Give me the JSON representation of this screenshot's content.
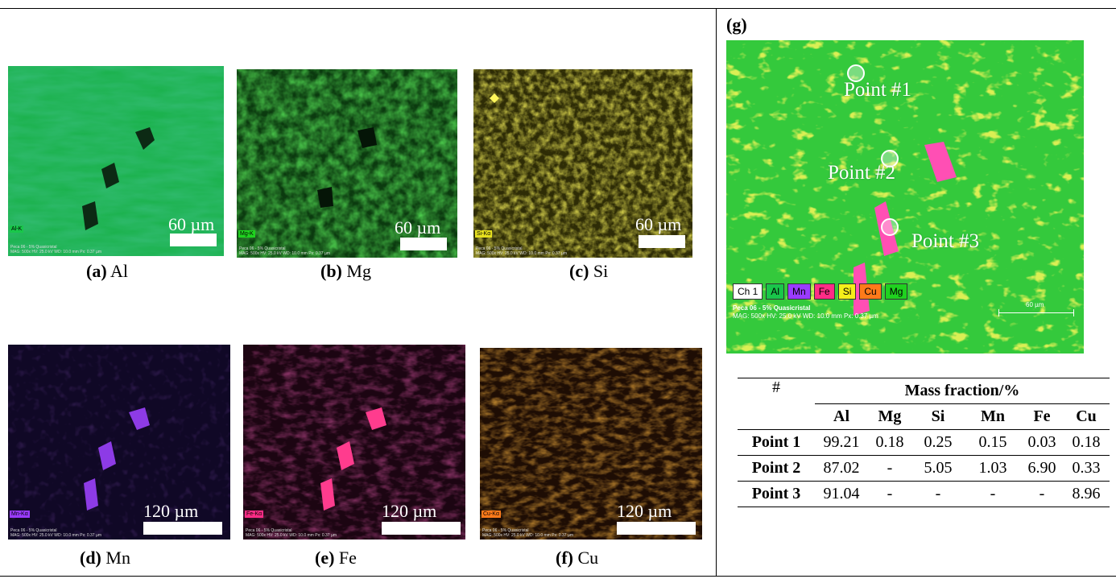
{
  "panels": [
    {
      "letter": "(a)",
      "element": "Al",
      "tag": "Al-K",
      "tag_color": "#19c64a",
      "scale": "60 µm",
      "meta": "Peca 06 - 5% Quasicristal\nMAG: 500x  HV: 25.0 kV  WD: 10.0 mm  Px: 0.37 µm"
    },
    {
      "letter": "(b)",
      "element": "Mg",
      "tag": "Mg-K",
      "tag_color": "#1fd21f",
      "scale": "60 µm",
      "meta": "Peca 06 - 5% Quasicristal\nMAG: 500x  HV: 25.0 kV  WD: 10.0 mm  Px: 0.37 µm"
    },
    {
      "letter": "(c)",
      "element": "Si",
      "tag": "Si-Kα",
      "tag_color": "#e6e01e",
      "scale": "60 µm",
      "meta": "Peca 06 - 5% Quasicristal\nMAG: 500x  HV: 25.0 kV  WD: 10.0 mm  Px: 0.37 µm"
    },
    {
      "letter": "(d)",
      "element": "Mn",
      "tag": "Mn-Kα",
      "tag_color": "#9a3bff",
      "scale": "120 µm",
      "meta": "Peca 06 - 5% Quasicristal\nMAG: 500x  HV: 25.0 kV  WD: 10.0 mm  Px: 0.37 µm"
    },
    {
      "letter": "(e)",
      "element": "Fe",
      "tag": "Fe-Kα",
      "tag_color": "#ff2c86",
      "scale": "120 µm",
      "meta": "Peca 06 - 5% Quasicristal\nMAG: 500x  HV: 25.0 kV  WD: 10.0 mm  Px: 0.37 µm"
    },
    {
      "letter": "(f)",
      "element": "Cu",
      "tag": "Cu-Kα",
      "tag_color": "#ff7a1a",
      "scale": "120 µm",
      "meta": "Peca 06 - 5% Quasicristal\nMAG: 500x  HV: 25.0 kV  WD: 10.0 mm  Px: 0.37 µm"
    }
  ],
  "composite": {
    "letter": "(g)",
    "points": [
      "Point #1",
      "Point #2",
      "Point #3"
    ],
    "legend": [
      {
        "label": "Ch 1",
        "color": "#ffffff"
      },
      {
        "label": "Al",
        "color": "#19c64a"
      },
      {
        "label": "Mn",
        "color": "#9a3bff"
      },
      {
        "label": "Fe",
        "color": "#ff2c86"
      },
      {
        "label": "Si",
        "color": "#f5ef1a"
      },
      {
        "label": "Cu",
        "color": "#ff7a1a"
      },
      {
        "label": "Mg",
        "color": "#1fd21f"
      }
    ],
    "meta_line1": "Peca 06 - 5% Quasicristal",
    "meta_line2": "MAG: 500x   HV: 25.0 kV   WD: 10.0 mm   Px: 0.37 µm",
    "scale": "60 µm"
  },
  "table": {
    "corner": "#",
    "group_header": "Mass fraction/%",
    "columns": [
      "Al",
      "Mg",
      "Si",
      "Mn",
      "Fe",
      "Cu"
    ],
    "rows": [
      {
        "label": "Point 1",
        "values": [
          "99.21",
          "0.18",
          "0.25",
          "0.15",
          "0.03",
          "0.18"
        ]
      },
      {
        "label": "Point 2",
        "values": [
          "87.02",
          "-",
          "5.05",
          "1.03",
          "6.90",
          "0.33"
        ]
      },
      {
        "label": "Point 3",
        "values": [
          "91.04",
          "-",
          "-",
          "-",
          "-",
          "8.96"
        ]
      }
    ]
  }
}
